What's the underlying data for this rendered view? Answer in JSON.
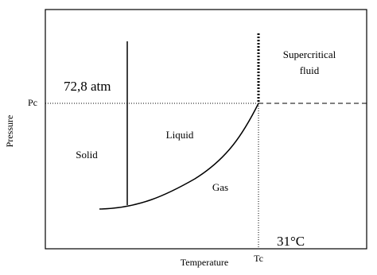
{
  "title": null,
  "axes": {
    "x_label": "Temperature",
    "y_label": "Pressure",
    "x_marker": "Tc",
    "y_marker": "Pc"
  },
  "regions": {
    "solid": "Solid",
    "liquid": "Liquid",
    "gas": "Gas",
    "supercritical_line1": "Supercritical",
    "supercritical_line2": "fluid"
  },
  "annotations": {
    "critical_pressure": "72,8 atm",
    "critical_temperature": "31°C"
  }
}
